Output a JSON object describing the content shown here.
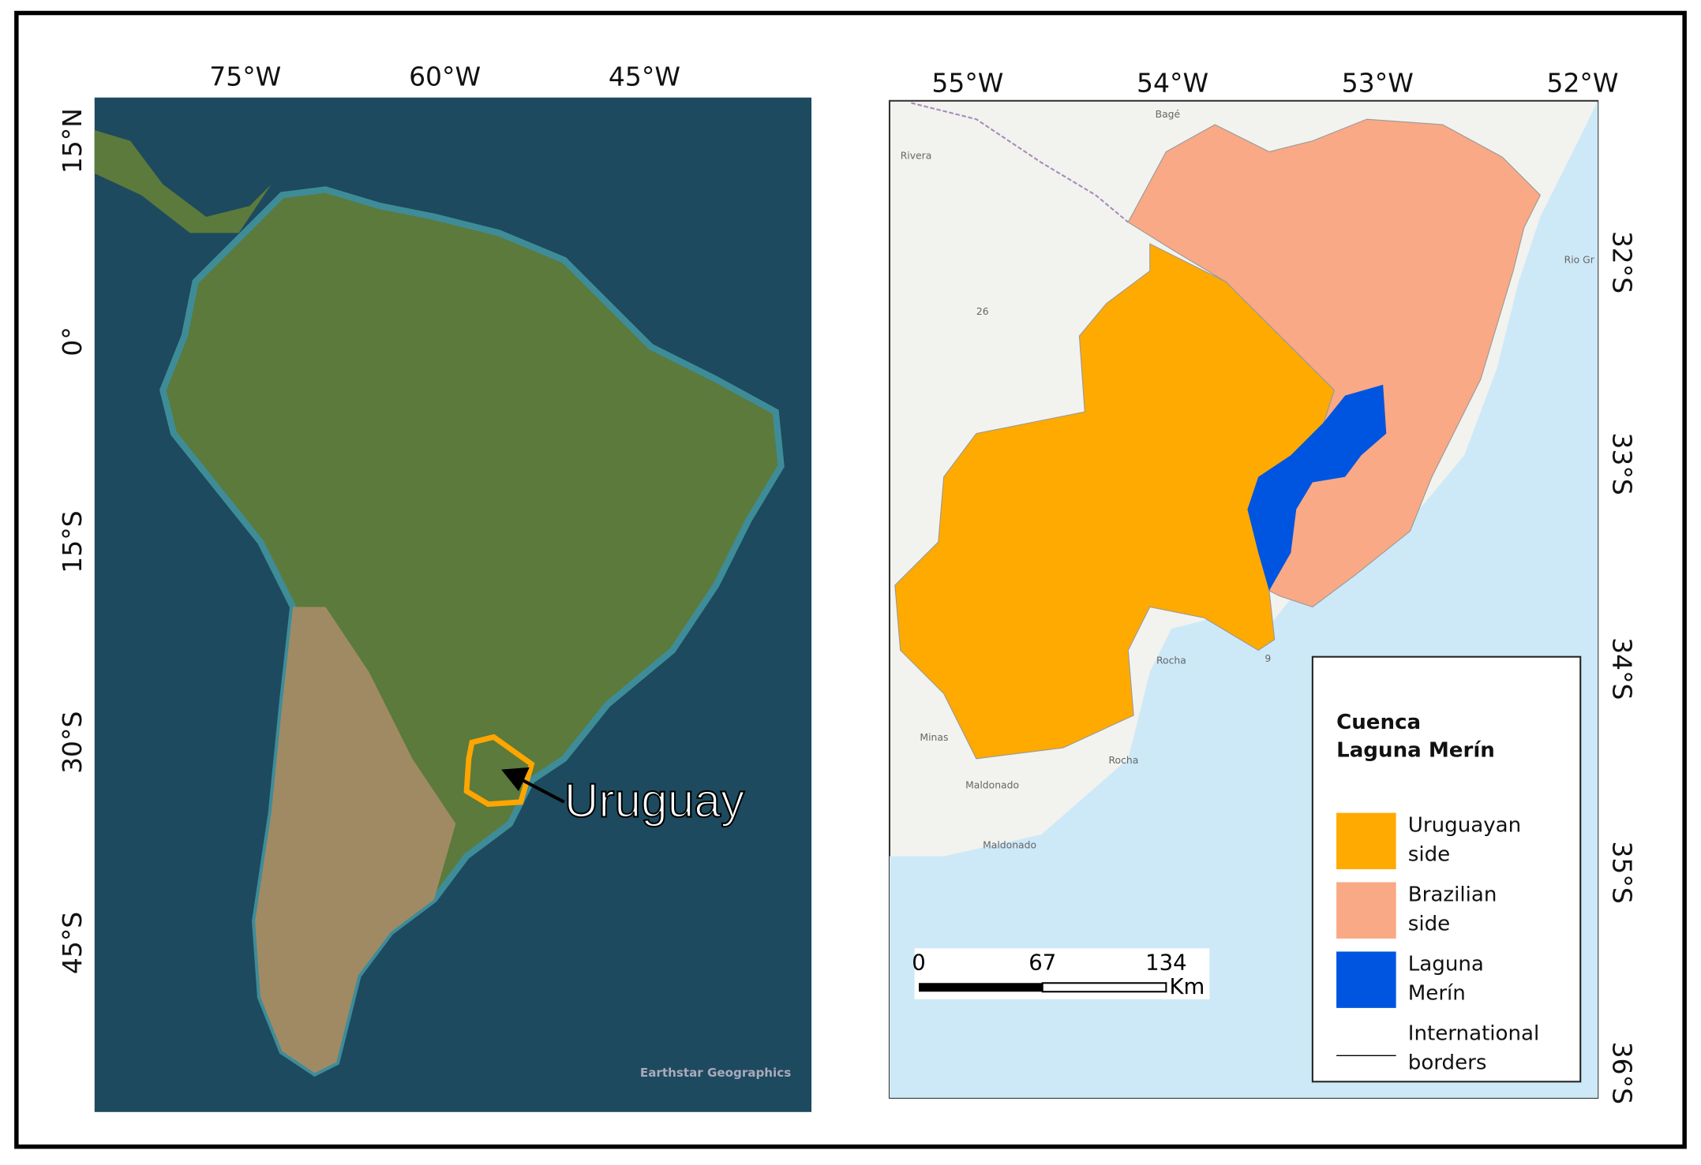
{
  "left_map": {
    "lon_labels": [
      "75°W",
      "60°W",
      "45°W"
    ],
    "lat_labels": [
      "15°N",
      "0°",
      "15°S",
      "30°S",
      "45°S"
    ],
    "callout": "Uruguay",
    "credit": "Earthstar Geographics"
  },
  "right_map": {
    "lon_labels": [
      "55°W",
      "54°W",
      "53°W",
      "52°W"
    ],
    "lat_labels": [
      "32°S",
      "33°S",
      "34°S",
      "35°S",
      "36°S"
    ],
    "place_labels": [
      "Bagé",
      "Rivera",
      "Rio Gr",
      "26",
      "Rocha",
      "9",
      "Minas",
      "Rocha",
      "Maldonado",
      "Maldonado"
    ],
    "legend": {
      "title_lines": [
        "Cuenca",
        "Laguna Merín"
      ],
      "items": [
        {
          "lines": [
            "Uruguayan",
            "side"
          ],
          "color": "#ffaa00"
        },
        {
          "lines": [
            "Brazilian",
            "side"
          ],
          "color": "#f9a985"
        },
        {
          "lines": [
            "Laguna",
            "Merín"
          ],
          "color": "#0055e0"
        },
        {
          "lines": [
            "International",
            "borders"
          ]
        }
      ]
    },
    "scale_bar": {
      "labels": [
        "0",
        "67",
        "134"
      ],
      "unit": "Km"
    }
  }
}
